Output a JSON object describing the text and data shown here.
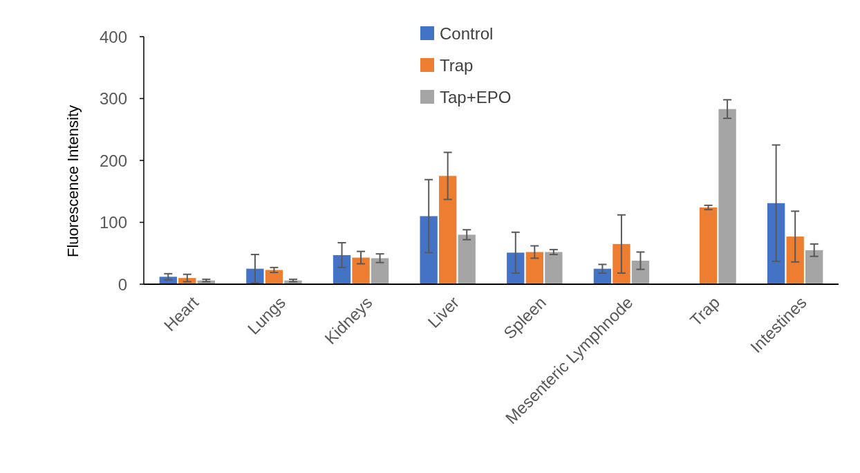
{
  "chart_data": {
    "type": "bar",
    "ylabel": "Fluorescence Intensity",
    "categories": [
      "Heart",
      "Lungs",
      "Kidneys",
      "Liver",
      "Spleen",
      "Mesenteric Lymphnode",
      "Trap",
      "Intestines"
    ],
    "series": [
      {
        "name": "Control",
        "color": "#4472c4",
        "values": [
          12,
          25,
          47,
          110,
          51,
          25,
          null,
          131
        ],
        "errors": [
          5,
          23,
          20,
          59,
          33,
          7,
          null,
          94
        ]
      },
      {
        "name": "Trap",
        "color": "#ed7d31",
        "values": [
          10,
          23,
          43,
          175,
          52,
          65,
          124,
          77
        ],
        "errors": [
          6,
          4,
          10,
          38,
          10,
          47,
          3.5,
          41
        ]
      },
      {
        "name": "Tap+EPO",
        "color": "#a5a5a5",
        "values": [
          6,
          6,
          42,
          80,
          52,
          38,
          283,
          55
        ],
        "errors": [
          2,
          2,
          7,
          8,
          4,
          14,
          15,
          10
        ]
      }
    ],
    "ylim": [
      0,
      400
    ],
    "yticks": [
      0,
      100,
      200,
      300,
      400
    ],
    "grid": false,
    "legend": "top"
  }
}
